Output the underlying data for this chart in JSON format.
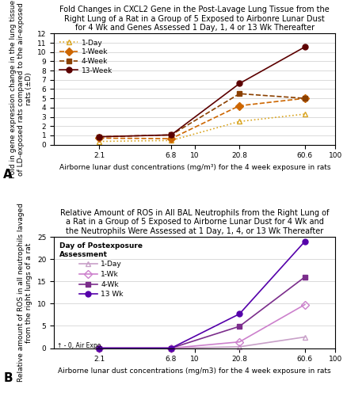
{
  "panel_A": {
    "title": "Fold Changes in CXCL2 Gene in the Post-Lavage Lung Tissue from the\nRight Lung of a Rat in a Group of 5 Exposed to Airbonre Lunar Dust\nfor 4 Wk and Genes Assessed 1 Day, 1, 4 or 13 Wk Thereafter",
    "xlabel": "Airborne lunar dust concentrations (mg/m³) for the 4 week exposure in rats",
    "ylabel": "Fold in gene expression change in the lung tissue\nof LD-exposed rats compared to the air-exposed\nrats (±D)",
    "panel_label": "A",
    "xvals": [
      2.1,
      6.8,
      20.8,
      60.6
    ],
    "xlim": [
      1,
      100
    ],
    "ylim": [
      0,
      12
    ],
    "yticks": [
      0,
      1,
      2,
      3,
      4,
      5,
      6,
      7,
      8,
      9,
      10,
      11,
      12
    ],
    "series": [
      {
        "label": "1-Day",
        "color": "#DAA520",
        "marker": "^",
        "linestyle": "dotted",
        "mfc": "none",
        "values": [
          0.35,
          0.45,
          2.5,
          3.3
        ]
      },
      {
        "label": "1-Week",
        "color": "#CD6600",
        "marker": "D",
        "linestyle": "dashed",
        "mfc": "#CD6600",
        "values": [
          0.7,
          0.65,
          4.2,
          5.0
        ]
      },
      {
        "label": "4-Week",
        "color": "#8B4000",
        "marker": "s",
        "linestyle": "dashed",
        "mfc": "#8B4000",
        "values": [
          0.85,
          1.05,
          5.5,
          5.0
        ]
      },
      {
        "label": "13-Week",
        "color": "#5C0000",
        "marker": "o",
        "linestyle": "solid",
        "mfc": "#5C0000",
        "values": [
          0.85,
          1.05,
          6.6,
          10.55
        ]
      }
    ]
  },
  "panel_B": {
    "title": "Relative Amount of ROS in All BAL Neutrophils from the Right Lung of\na Rat in a Group of 5 Exposed to Airborne Lunar Dust for 4 Wk and\nthe Neutrophils Were Assessed at 1 Day, 1, 4, or 13 Wk Thereafter",
    "xlabel": "Airborne lunar dust concentrations (mg/m3) for the 4 week exposure in rats",
    "ylabel": "Relative amount of ROS in all neutrophils lavaged\nfrom the right lungs of a rat",
    "panel_label": "B",
    "xvals": [
      2.1,
      6.8,
      20.8,
      60.6
    ],
    "xlim": [
      1,
      100
    ],
    "ylim": [
      0,
      25
    ],
    "yticks": [
      0,
      5,
      10,
      15,
      20,
      25
    ],
    "legend_title_line1": "Day of Postexposure",
    "legend_title_line2": "Assessment",
    "annotation": "↑ - 0, Air Expo.",
    "series": [
      {
        "label": "1-Day",
        "color": "#C8A0C8",
        "marker": "^",
        "linestyle": "solid",
        "mfc": "none",
        "values": [
          0.0,
          0.0,
          0.3,
          2.5
        ]
      },
      {
        "label": "1-Wk",
        "color": "#CC80CC",
        "marker": "D",
        "linestyle": "solid",
        "mfc": "none",
        "values": [
          0.0,
          0.0,
          1.4,
          9.8
        ]
      },
      {
        "label": "4-Wk",
        "color": "#7B2D8B",
        "marker": "s",
        "linestyle": "solid",
        "mfc": "#7B2D8B",
        "values": [
          0.0,
          0.0,
          4.9,
          16.0
        ]
      },
      {
        "label": "13 Wk",
        "color": "#5500AA",
        "marker": "o",
        "linestyle": "solid",
        "mfc": "#5500AA",
        "values": [
          0.0,
          0.0,
          7.7,
          24.0
        ]
      }
    ]
  },
  "background_color": "#FFFFFF",
  "grid_color": "#CCCCCC",
  "title_fontsize": 7.0,
  "label_fontsize": 6.5,
  "tick_fontsize": 6.5,
  "legend_fontsize": 6.5,
  "linewidth": 1.2,
  "markersize": 5
}
